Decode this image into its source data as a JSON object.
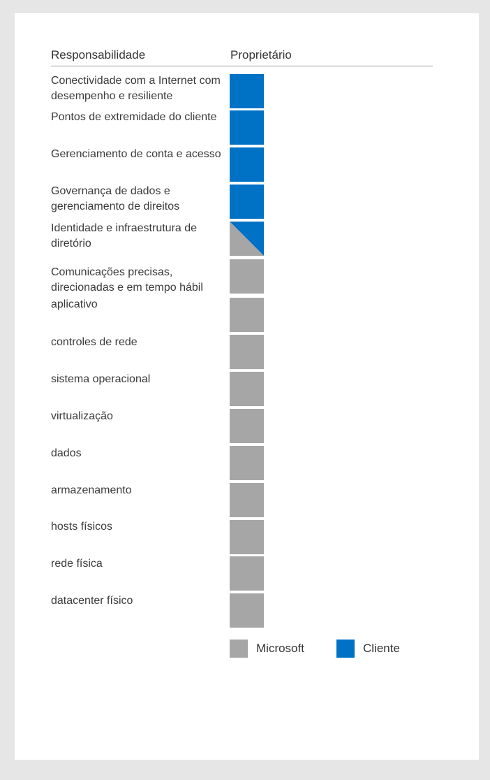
{
  "header": {
    "responsibility": "Responsabilidade",
    "owner": "Proprietário"
  },
  "colors": {
    "microsoft": "#a6a6a6",
    "customer": "#0072c6"
  },
  "rows": [
    {
      "label": "Conectividade com a Internet com desempenho e resiliente",
      "owner": "customer"
    },
    {
      "label": "Pontos de extremidade do cliente",
      "owner": "customer"
    },
    {
      "label": "Gerenciamento de conta e acesso",
      "owner": "customer"
    },
    {
      "label": "Governança de dados e gerenciamento de direitos",
      "owner": "customer"
    },
    {
      "label": "Identidade e infraestrutura de diretório",
      "owner": "shared"
    },
    {
      "label": "Comunicações precisas, direcionadas e em tempo hábil",
      "owner": "microsoft"
    },
    {
      "label": "aplicativo",
      "owner": "microsoft"
    },
    {
      "label": "controles de rede",
      "owner": "microsoft"
    },
    {
      "label": "sistema operacional",
      "owner": "microsoft"
    },
    {
      "label": "virtualização",
      "owner": "microsoft"
    },
    {
      "label": "dados",
      "owner": "microsoft"
    },
    {
      "label": "armazenamento",
      "owner": "microsoft"
    },
    {
      "label": "hosts físicos",
      "owner": "microsoft"
    },
    {
      "label": "rede física",
      "owner": "microsoft"
    },
    {
      "label": "datacenter físico",
      "owner": "microsoft"
    }
  ],
  "legend": {
    "microsoft": "Microsoft",
    "customer": "Cliente"
  }
}
